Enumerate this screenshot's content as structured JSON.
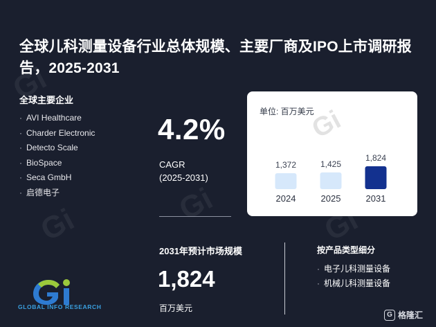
{
  "header": {
    "title": "全球儿科测量设备行业总体规模、主要厂商及IPO上市调研报告，2025-2031"
  },
  "companies": {
    "heading": "全球主要企业",
    "items": [
      "AVI Healthcare",
      "Charder Electronic",
      "Detecto Scale",
      "BioSpace",
      "Seca GmbH",
      "启德电子"
    ]
  },
  "cagr": {
    "value": "4.2%",
    "label": "CAGR",
    "period": "(2025-2031)"
  },
  "chart_data": {
    "type": "bar",
    "unit_label": "单位: 百万美元",
    "categories": [
      "2024",
      "2025",
      "2031"
    ],
    "values": [
      1372,
      1425,
      1824
    ],
    "value_labels": [
      "1,372",
      "1,425",
      "1,824"
    ],
    "colors": [
      "#d6e8fb",
      "#d6e8fb",
      "#13318f"
    ],
    "grid": false,
    "legend": "none"
  },
  "market": {
    "heading": "2031年预计市场规模",
    "value": "1,824",
    "unit": "百万美元"
  },
  "segments": {
    "heading": "按产品类型细分",
    "items": [
      "电子儿科测量设备",
      "机械儿科测量设备"
    ]
  },
  "logo": {
    "text": "GLOBAL INFO RESEARCH",
    "icon": "gir-logo-icon"
  },
  "brand": {
    "icon_letter": "G",
    "text": "格隆汇"
  }
}
